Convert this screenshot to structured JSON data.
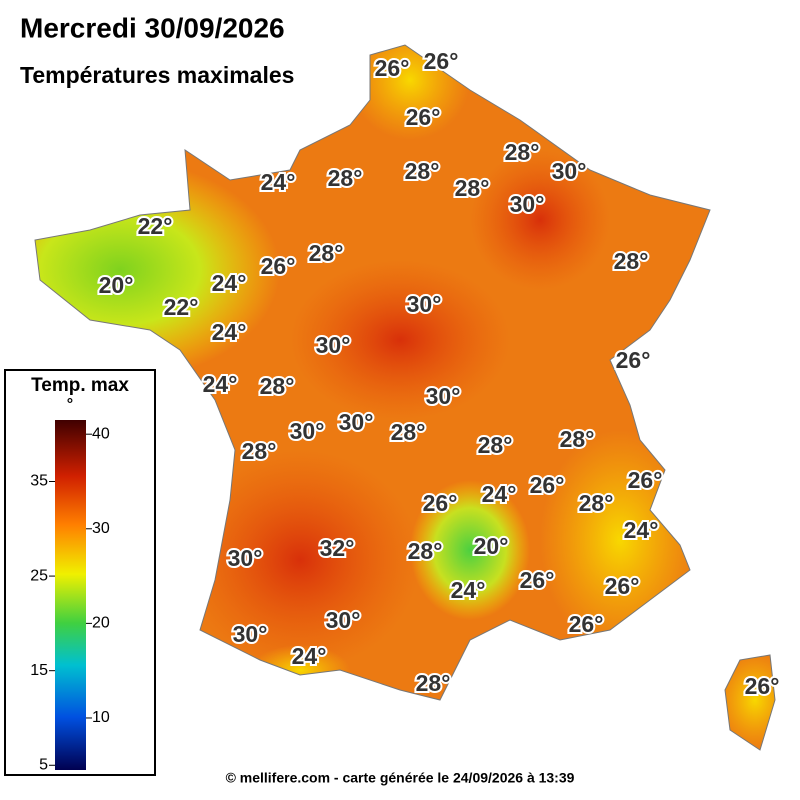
{
  "header": {
    "title": "Mercredi 30/09/2026",
    "subtitle": "Températures maximales"
  },
  "map": {
    "labels": [
      "26°",
      "26°",
      "26°",
      "28°",
      "30°",
      "24°",
      "28°",
      "28°",
      "28°",
      "30°",
      "22°",
      "28°",
      "26°",
      "20°",
      "24°",
      "28°",
      "22°",
      "30°",
      "24°",
      "30°",
      "26°",
      "24°",
      "28°",
      "30°",
      "30°",
      "30°",
      "28°",
      "28°",
      "28°",
      "28°",
      "26°",
      "24°",
      "26°",
      "26°",
      "28°",
      "24°",
      "30°",
      "32°",
      "28°",
      "20°",
      "26°",
      "24°",
      "26°",
      "30°",
      "30°",
      "26°",
      "24°",
      "28°",
      "26°"
    ]
  },
  "legend": {
    "title": "Temp. max",
    "unit": "°",
    "range": [
      4.5,
      41.5
    ],
    "ticks": [
      5,
      10,
      15,
      20,
      25,
      30,
      35,
      40
    ]
  },
  "footer": "© mellifere.com - carte générée le 24/09/2026 à 13:39"
}
